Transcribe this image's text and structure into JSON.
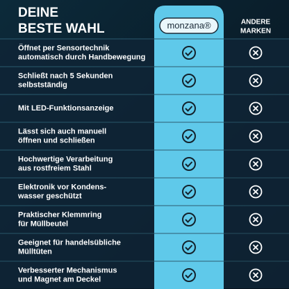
{
  "header": {
    "title_lines": [
      "DEINE",
      "BESTE WAHL"
    ],
    "brand": "monzana®",
    "other_lines": [
      "ANDERE",
      "MARKEN"
    ]
  },
  "rows": [
    {
      "lines": [
        "Öffnet per Sensortechnik",
        "automatisch durch Handbewegung"
      ]
    },
    {
      "lines": [
        "Schließt nach 5 Sekunden",
        "selbstständig"
      ]
    },
    {
      "lines": [
        "Mit LED-Funktionsanzeige"
      ]
    },
    {
      "lines": [
        "Lässt sich auch manuell",
        "öffnen und schließen"
      ]
    },
    {
      "lines": [
        "Hochwertige Verarbeitung",
        "aus rostfreiem Stahl"
      ]
    },
    {
      "lines": [
        "Elektronik vor Kondens-",
        "wasser geschützt"
      ]
    },
    {
      "lines": [
        "Praktischer Klemmring",
        "für Müllbeutel"
      ]
    },
    {
      "lines": [
        "Geeignet für handelsübliche",
        "Mülltüten"
      ]
    },
    {
      "lines": [
        "Verbesserter Mechanismus",
        "und Magnet am Deckel"
      ]
    }
  ]
}
